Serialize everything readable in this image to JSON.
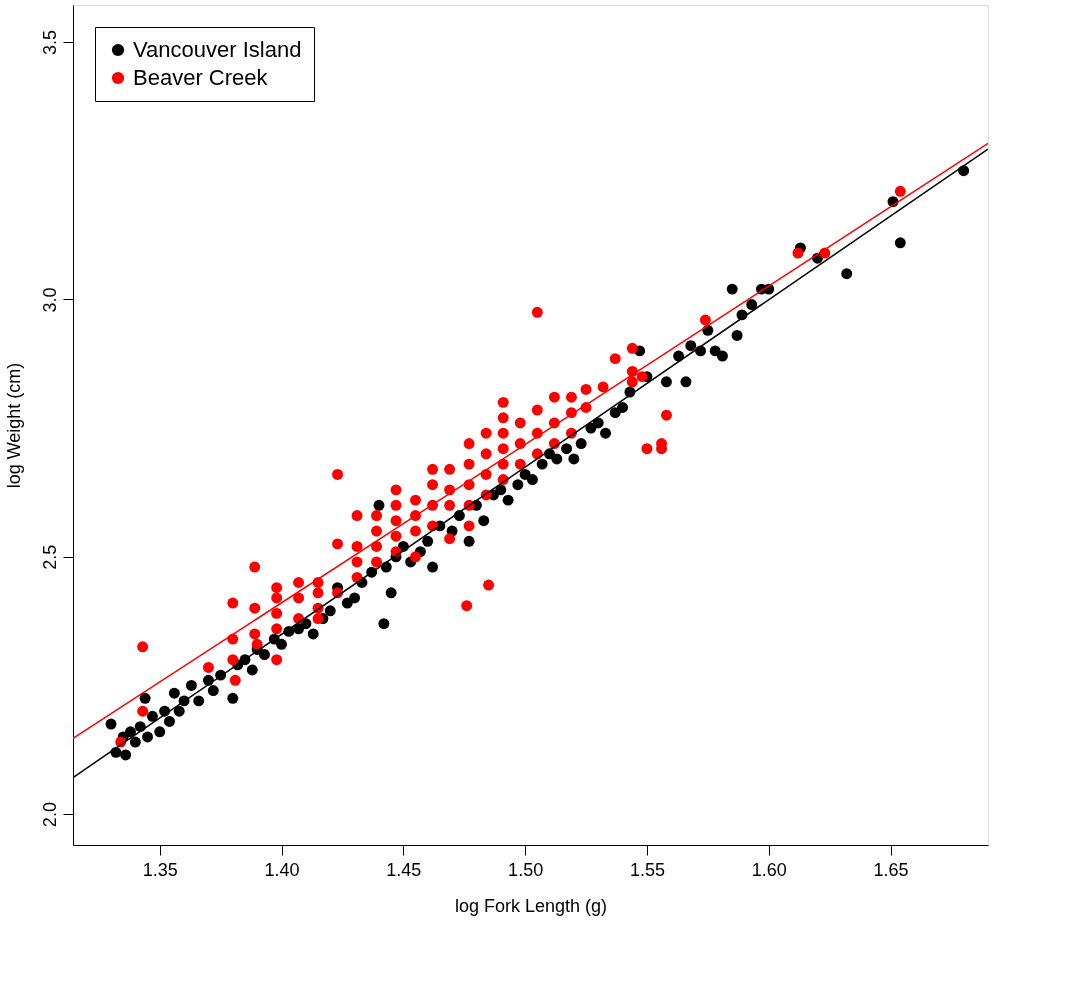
{
  "chart_data": {
    "type": "scatter",
    "xlabel": "log Fork Length (g)",
    "ylabel": "log Weight (cm)",
    "xlim": [
      1.3144,
      1.69
    ],
    "ylim": [
      1.94,
      3.572
    ],
    "xticks": [
      1.35,
      {
        "value": 1.4,
        "label": "1.40"
      },
      1.45,
      {
        "value": 1.5,
        "label": "1.50"
      },
      1.55,
      {
        "value": 1.6,
        "label": "1.60"
      },
      1.65
    ],
    "yticks": [
      {
        "value": 2,
        "label": "2.0"
      },
      2.5,
      {
        "value": 3,
        "label": "3.0"
      },
      3.5
    ],
    "grid": false,
    "legend": "top left",
    "marker": "circle",
    "series": [
      {
        "name": "Vancouver Island",
        "color": "#000000",
        "x": [
          1.33,
          1.332,
          1.335,
          1.336,
          1.338,
          1.34,
          1.342,
          1.344,
          1.345,
          1.347,
          1.35,
          1.352,
          1.354,
          1.356,
          1.358,
          1.36,
          1.363,
          1.366,
          1.37,
          1.372,
          1.375,
          1.38,
          1.382,
          1.385,
          1.388,
          1.39,
          1.393,
          1.397,
          1.4,
          1.403,
          1.407,
          1.41,
          1.413,
          1.417,
          1.42,
          1.423,
          1.427,
          1.43,
          1.433,
          1.437,
          1.44,
          1.442,
          1.443,
          1.445,
          1.447,
          1.45,
          1.453,
          1.457,
          1.46,
          1.462,
          1.465,
          1.47,
          1.473,
          1.477,
          1.48,
          1.483,
          1.487,
          1.49,
          1.493,
          1.497,
          1.5,
          1.503,
          1.507,
          1.51,
          1.513,
          1.517,
          1.52,
          1.523,
          1.527,
          1.53,
          1.533,
          1.537,
          1.54,
          1.543,
          1.547,
          1.55,
          1.558,
          1.563,
          1.566,
          1.568,
          1.572,
          1.575,
          1.578,
          1.581,
          1.585,
          1.587,
          1.589,
          1.593,
          1.597,
          1.6,
          1.613,
          1.62,
          1.632,
          1.651,
          1.654,
          1.68
        ],
        "values": [
          2.175,
          2.12,
          2.15,
          2.115,
          2.16,
          2.14,
          2.17,
          2.225,
          2.15,
          2.19,
          2.16,
          2.2,
          2.18,
          2.235,
          2.2,
          2.22,
          2.25,
          2.22,
          2.26,
          2.24,
          2.27,
          2.225,
          2.29,
          2.3,
          2.28,
          2.32,
          2.31,
          2.34,
          2.33,
          2.355,
          2.36,
          2.37,
          2.35,
          2.38,
          2.395,
          2.44,
          2.41,
          2.42,
          2.45,
          2.47,
          2.6,
          2.37,
          2.48,
          2.43,
          2.5,
          2.52,
          2.49,
          2.51,
          2.53,
          2.48,
          2.56,
          2.55,
          2.58,
          2.53,
          2.6,
          2.57,
          2.62,
          2.63,
          2.61,
          2.64,
          2.66,
          2.65,
          2.68,
          2.7,
          2.69,
          2.71,
          2.69,
          2.72,
          2.75,
          2.76,
          2.74,
          2.78,
          2.79,
          2.82,
          2.9,
          2.85,
          2.84,
          2.89,
          2.84,
          2.91,
          2.9,
          2.94,
          2.9,
          2.89,
          3.02,
          2.93,
          2.97,
          2.99,
          3.02,
          3.02,
          3.1,
          3.08,
          3.05,
          3.19,
          3.11,
          3.25
        ]
      },
      {
        "name": "Beaver Creek",
        "color": "#ff0000",
        "x": [
          1.334,
          1.343,
          1.343,
          1.37,
          1.38,
          1.38,
          1.38,
          1.381,
          1.389,
          1.389,
          1.389,
          1.39,
          1.398,
          1.398,
          1.398,
          1.398,
          1.398,
          1.407,
          1.407,
          1.407,
          1.415,
          1.415,
          1.415,
          1.415,
          1.423,
          1.423,
          1.423,
          1.431,
          1.431,
          1.431,
          1.431,
          1.439,
          1.439,
          1.439,
          1.439,
          1.447,
          1.447,
          1.447,
          1.447,
          1.447,
          1.455,
          1.455,
          1.455,
          1.455,
          1.462,
          1.462,
          1.462,
          1.462,
          1.469,
          1.469,
          1.469,
          1.469,
          1.476,
          1.477,
          1.477,
          1.477,
          1.477,
          1.477,
          1.484,
          1.484,
          1.484,
          1.484,
          1.485,
          1.491,
          1.491,
          1.491,
          1.491,
          1.491,
          1.491,
          1.498,
          1.498,
          1.498,
          1.505,
          1.505,
          1.505,
          1.505,
          1.512,
          1.512,
          1.512,
          1.519,
          1.519,
          1.519,
          1.525,
          1.525,
          1.532,
          1.537,
          1.544,
          1.544,
          1.544,
          1.548,
          1.55,
          1.556,
          1.556,
          1.558,
          1.574,
          1.612,
          1.623,
          1.654
        ],
        "values": [
          2.14,
          2.325,
          2.2,
          2.285,
          2.41,
          2.34,
          2.3,
          2.26,
          2.48,
          2.4,
          2.35,
          2.33,
          2.44,
          2.42,
          2.39,
          2.36,
          2.3,
          2.45,
          2.42,
          2.38,
          2.45,
          2.43,
          2.4,
          2.38,
          2.66,
          2.525,
          2.43,
          2.58,
          2.52,
          2.49,
          2.46,
          2.58,
          2.55,
          2.52,
          2.49,
          2.63,
          2.6,
          2.57,
          2.54,
          2.51,
          2.61,
          2.58,
          2.55,
          2.5,
          2.67,
          2.64,
          2.6,
          2.56,
          2.67,
          2.63,
          2.6,
          2.535,
          2.405,
          2.72,
          2.68,
          2.64,
          2.6,
          2.56,
          2.74,
          2.7,
          2.66,
          2.62,
          2.445,
          2.8,
          2.77,
          2.74,
          2.71,
          2.68,
          2.65,
          2.76,
          2.72,
          2.68,
          2.975,
          2.785,
          2.74,
          2.7,
          2.81,
          2.76,
          2.72,
          2.81,
          2.78,
          2.74,
          2.825,
          2.79,
          2.83,
          2.885,
          2.905,
          2.86,
          2.84,
          2.85,
          2.71,
          2.72,
          2.71,
          2.775,
          2.96,
          3.09,
          3.09,
          3.21
        ]
      },
      {
        "type": "line",
        "marker": "none",
        "color": "#000000",
        "x": [
          1.3144,
          1.69
        ],
        "values": [
          2.071,
          3.292
        ]
      },
      {
        "type": "line",
        "marker": "none",
        "color": "#ff0000",
        "x": [
          1.3144,
          1.69
        ],
        "values": [
          2.147,
          3.303
        ]
      }
    ]
  }
}
